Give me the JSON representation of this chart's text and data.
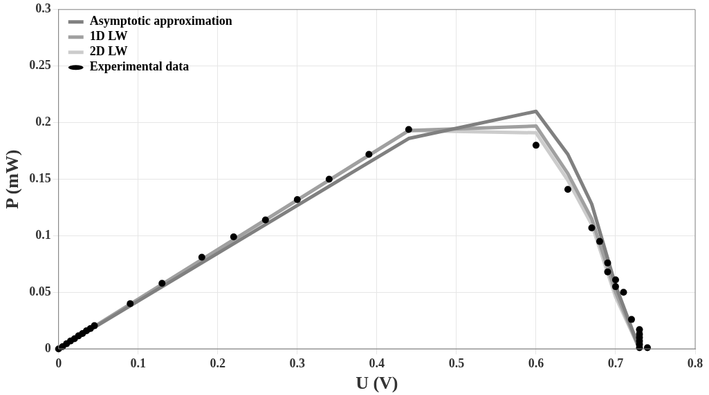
{
  "chart_data": {
    "type": "line",
    "xlabel": "U (V)",
    "ylabel": "P (mW)",
    "xlim": [
      0,
      0.8
    ],
    "ylim": [
      0,
      0.3
    ],
    "xticks": [
      0,
      0.1,
      0.2,
      0.3,
      0.4,
      0.5,
      0.6,
      0.7,
      0.8
    ],
    "yticks": [
      0,
      0.05,
      0.1,
      0.15,
      0.2,
      0.25,
      0.3
    ],
    "grid": true,
    "legend": "top left",
    "series": [
      {
        "name": "Asymptotic approximation",
        "color": "#808080",
        "marker": "none",
        "x": [
          0,
          0.44,
          0.6,
          0.64,
          0.67,
          0.7,
          0.73
        ],
        "values": [
          0,
          0.186,
          0.21,
          0.172,
          0.128,
          0.056,
          0
        ]
      },
      {
        "name": "1D LW",
        "color": "#a0a0a0",
        "marker": "none",
        "x": [
          0,
          0.44,
          0.6,
          0.64,
          0.67,
          0.7,
          0.73
        ],
        "values": [
          0,
          0.193,
          0.197,
          0.155,
          0.115,
          0.05,
          0
        ]
      },
      {
        "name": "2D LW",
        "color": "#cccccc",
        "marker": "none",
        "x": [
          0,
          0.44,
          0.6,
          0.64,
          0.67,
          0.7,
          0.73
        ],
        "values": [
          0,
          0.193,
          0.191,
          0.149,
          0.11,
          0.046,
          0
        ]
      },
      {
        "name": "Experimental data",
        "type": "scatter",
        "color": "#000000",
        "marker": "circle",
        "x": [
          0,
          0.005,
          0.01,
          0.015,
          0.02,
          0.025,
          0.03,
          0.035,
          0.04,
          0.045,
          0.09,
          0.13,
          0.18,
          0.22,
          0.26,
          0.3,
          0.34,
          0.39,
          0.44,
          0.6,
          0.64,
          0.67,
          0.68,
          0.69,
          0.69,
          0.7,
          0.7,
          0.71,
          0.72,
          0.73,
          0.73,
          0.73,
          0.73,
          0.73,
          0.73,
          0.74
        ],
        "values": [
          0,
          0.002,
          0.0045,
          0.007,
          0.009,
          0.0115,
          0.0135,
          0.016,
          0.018,
          0.0205,
          0.04,
          0.058,
          0.081,
          0.099,
          0.114,
          0.132,
          0.15,
          0.172,
          0.194,
          0.18,
          0.141,
          0.107,
          0.095,
          0.076,
          0.068,
          0.061,
          0.055,
          0.05,
          0.026,
          0.017,
          0.013,
          0.01,
          0.007,
          0.004,
          0.001,
          0.001
        ]
      }
    ]
  }
}
